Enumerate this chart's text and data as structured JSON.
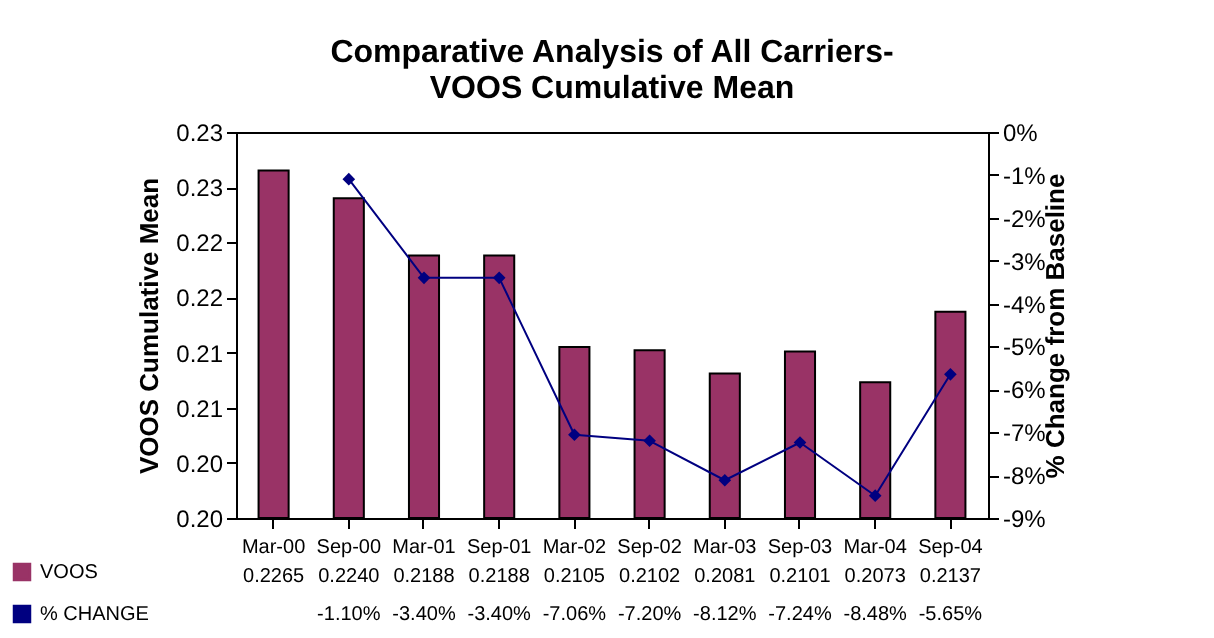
{
  "chart_data": {
    "type": "bar",
    "title": "Comparative Analysis of All Carriers-\nVOOS Cumulative Mean",
    "ylabel": "VOOS Cumulative Mean",
    "y2label": "% Change from Baseline",
    "categories": [
      "Mar-00",
      "Sep-00",
      "Mar-01",
      "Sep-01",
      "Mar-02",
      "Sep-02",
      "Mar-03",
      "Sep-03",
      "Mar-04",
      "Sep-04"
    ],
    "series": [
      {
        "name": "VOOS",
        "color": "#993366",
        "values": [
          0.2265,
          0.224,
          0.2188,
          0.2188,
          0.2105,
          0.2102,
          0.2081,
          0.2101,
          0.2073,
          0.2137
        ],
        "value_labels": [
          "0.2265",
          "0.2240",
          "0.2188",
          "0.2188",
          "0.2105",
          "0.2102",
          "0.2081",
          "0.2101",
          "0.2073",
          "0.2137"
        ]
      },
      {
        "name": "% CHANGE",
        "type": "line",
        "axis": "y2",
        "color": "#000080",
        "values": [
          null,
          -1.1,
          -3.4,
          -3.4,
          -7.06,
          -7.2,
          -8.12,
          -7.24,
          -8.48,
          -5.65
        ],
        "value_labels": [
          null,
          "-1.10%",
          "-3.40%",
          "-3.40%",
          "-7.06%",
          "-7.20%",
          "-8.12%",
          "-7.24%",
          "-8.48%",
          "-5.65%"
        ]
      }
    ],
    "ylim": [
      0.195,
      0.23
    ],
    "yticks": [
      {
        "value": 0.195,
        "label": "0.20"
      },
      {
        "value": 0.2,
        "label": "0.20"
      },
      {
        "value": 0.205,
        "label": "0.21"
      },
      {
        "value": 0.21,
        "label": "0.21"
      },
      {
        "value": 0.215,
        "label": "0.22"
      },
      {
        "value": 0.22,
        "label": "0.22"
      },
      {
        "value": 0.225,
        "label": "0.23"
      },
      {
        "value": 0.23,
        "label": "0.23"
      }
    ],
    "y2lim": [
      -9,
      0
    ],
    "y2ticks": [
      {
        "value": -9,
        "label": "-9%"
      },
      {
        "value": -8,
        "label": "-8%"
      },
      {
        "value": -7,
        "label": "-7%"
      },
      {
        "value": -6,
        "label": "-6%"
      },
      {
        "value": -5,
        "label": "-5%"
      },
      {
        "value": -4,
        "label": "-4%"
      },
      {
        "value": -3,
        "label": "-3%"
      },
      {
        "value": -2,
        "label": "-2%"
      },
      {
        "value": -1,
        "label": "-1%"
      },
      {
        "value": 0,
        "label": "0%"
      }
    ],
    "legend": "bottom left",
    "marker": "diamond"
  }
}
